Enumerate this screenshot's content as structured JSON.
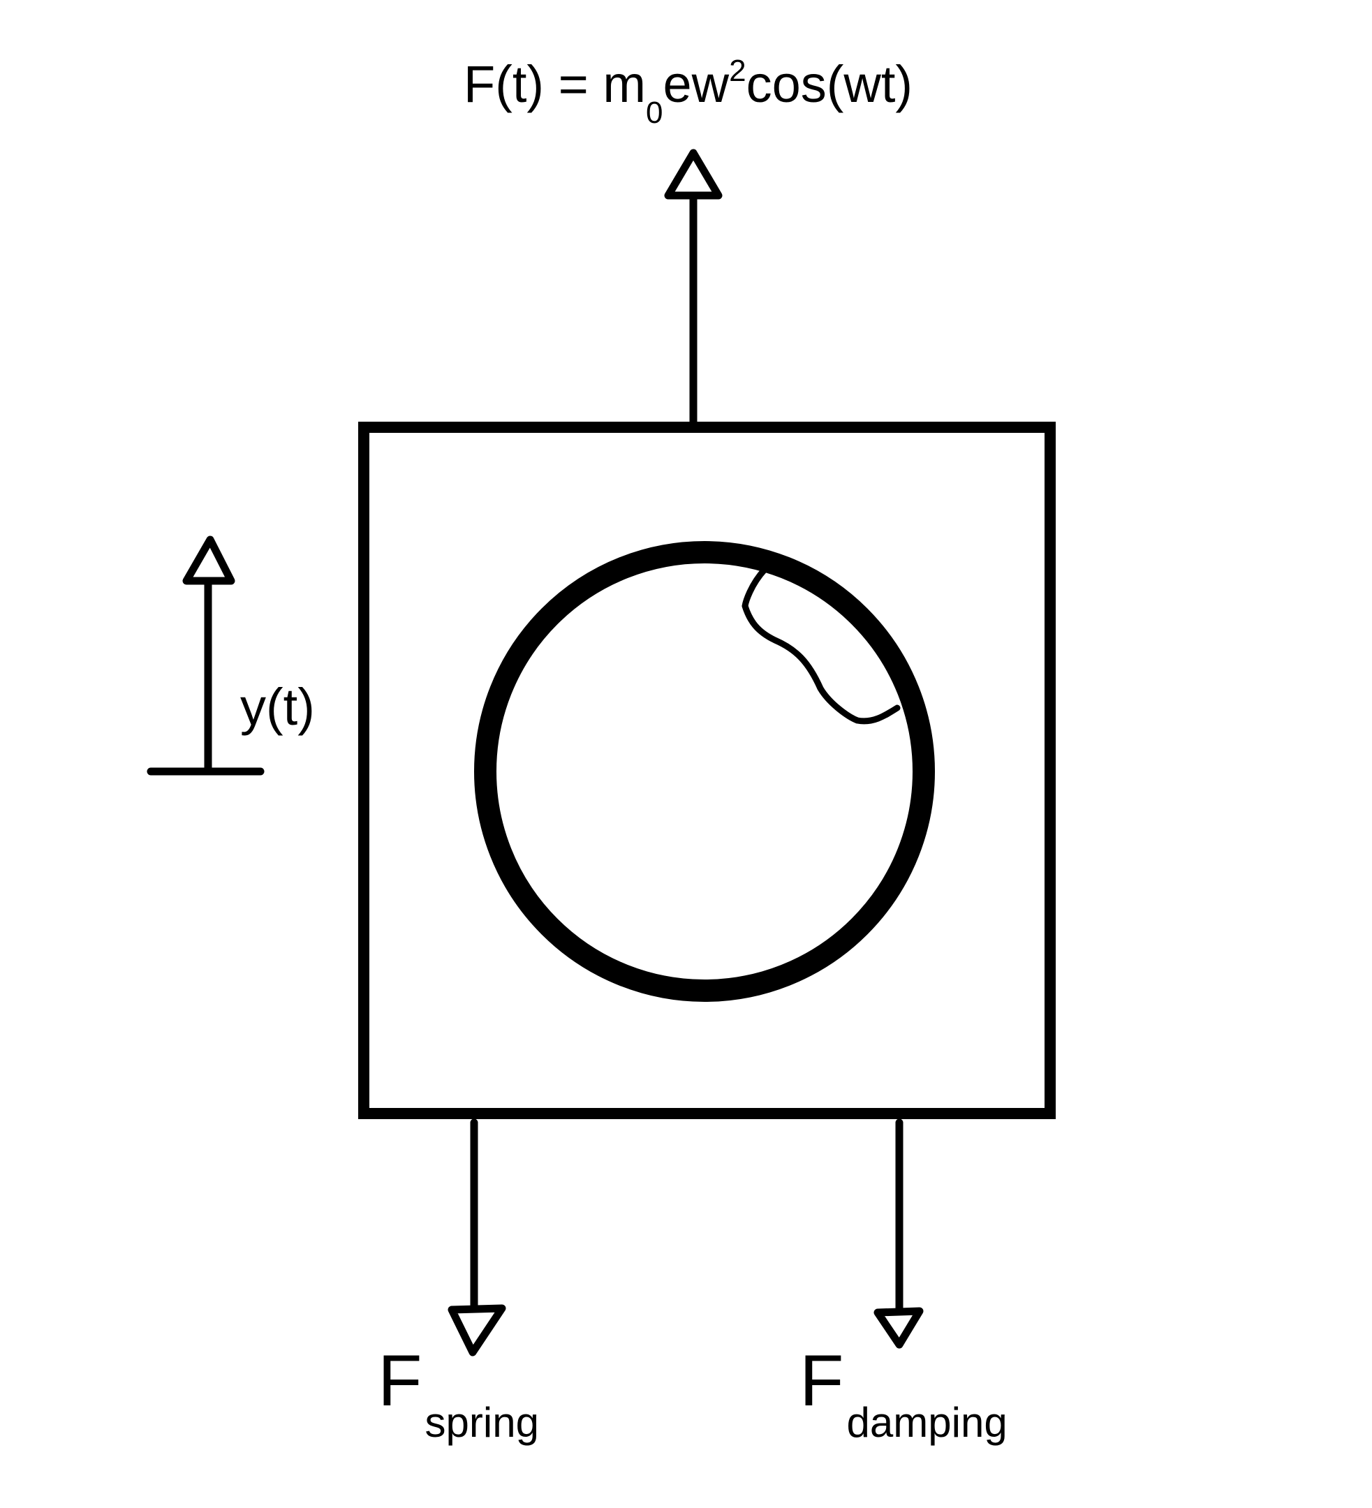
{
  "force_equation": {
    "lhs": "F(t) = m",
    "subscript": "0",
    "mid": "ew",
    "superscript": "2",
    "rhs": "cos(wt)"
  },
  "displacement_label": "y(t)",
  "spring_force": {
    "symbol": "F",
    "subscript": "spring"
  },
  "damping_force": {
    "symbol": "F",
    "subscript": "damping"
  },
  "colors": {
    "stroke": "#000000",
    "background": "#ffffff"
  }
}
